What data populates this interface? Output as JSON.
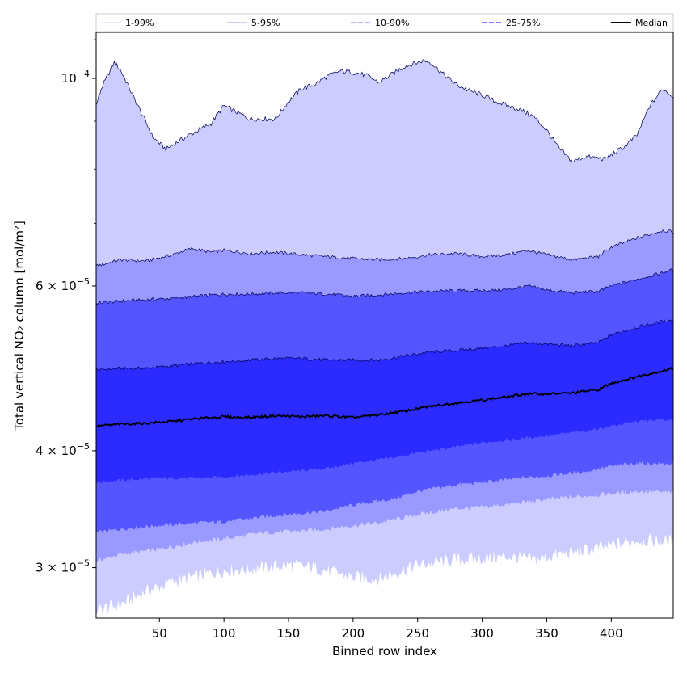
{
  "chart_data": {
    "type": "area",
    "title": "",
    "xlabel": "Binned row index",
    "ylabel": "Total vertical NO₂ column [mol/m²]",
    "x_range": [
      1,
      448
    ],
    "ylim": [
      2.65e-05,
      0.000112
    ],
    "y_scale": "log",
    "x_ticks": [
      50,
      100,
      150,
      200,
      250,
      300,
      350,
      400
    ],
    "x_tick_labels": [
      "50",
      "100",
      "150",
      "200",
      "250",
      "300",
      "350",
      "400"
    ],
    "y_ticks": [
      3e-05,
      4e-05,
      6e-05,
      0.0001
    ],
    "y_tick_labels": [
      {
        "mant": "3 × 10",
        "exp": "−5"
      },
      {
        "mant": "4 × 10",
        "exp": "−5"
      },
      {
        "mant": "6 × 10",
        "exp": "−5"
      },
      {
        "mant": "10",
        "exp": "−4"
      }
    ],
    "legend_position": "top",
    "legend": [
      "1-99%",
      "5-95%",
      "10-90%",
      "25-75%",
      "Median"
    ],
    "colors": {
      "band_1_99": "#ccccff",
      "band_5_95": "#9999ff",
      "band_10_90": "#5555ff",
      "band_25_75": "#2b2bff",
      "median": "#000000",
      "outline": "#000055"
    },
    "bands": [
      {
        "name": "1-99%",
        "lower": {
          "x": [
            1,
            10,
            20,
            40,
            60,
            80,
            100,
            130,
            150,
            170,
            200,
            220,
            250,
            280,
            300,
            320,
            340,
            360,
            380,
            400,
            420,
            448
          ],
          "y": [
            2.7e-05,
            2.72e-05,
            2.74e-05,
            2.83e-05,
            2.9e-05,
            2.94e-05,
            2.98e-05,
            3e-05,
            3.02e-05,
            3e-05,
            2.93e-05,
            2.92e-05,
            3.02e-05,
            3.06e-05,
            3.07e-05,
            3.08e-05,
            3.06e-05,
            3.1e-05,
            3.13e-05,
            3.17e-05,
            3.21e-05,
            3.2e-05
          ]
        },
        "upper": {
          "x": [
            1,
            5,
            15,
            20,
            30,
            45,
            55,
            70,
            90,
            100,
            110,
            120,
            140,
            150,
            160,
            170,
            180,
            190,
            200,
            210,
            220,
            240,
            255,
            260,
            270,
            280,
            290,
            300,
            310,
            320,
            330,
            340,
            350,
            360,
            370,
            380,
            395,
            410,
            420,
            430,
            440,
            448
          ],
          "y": [
            9.35e-05,
            9.75e-05,
            0.000104,
            0.000102,
            9.55e-05,
            8.65e-05,
            8.4e-05,
            8.65e-05,
            8.95e-05,
            9.35e-05,
            9.2e-05,
            9.05e-05,
            9.05e-05,
            9.45e-05,
            9.75e-05,
            9.85e-05,
            0.0001005,
            0.0001018,
            0.0001015,
            0.0001008,
            9.9e-05,
            0.000103,
            0.0001045,
            0.000104,
            0.000101,
            9.85e-05,
            9.7e-05,
            9.6e-05,
            9.45e-05,
            9.35e-05,
            9.25e-05,
            9.1e-05,
            8.8e-05,
            8.4e-05,
            8.15e-05,
            8.25e-05,
            8.2e-05,
            8.45e-05,
            8.7e-05,
            9.35e-05,
            9.75e-05,
            9.55e-05
          ]
        }
      },
      {
        "name": "5-95%",
        "lower": {
          "x": [
            1,
            20,
            50,
            80,
            100,
            130,
            150,
            180,
            200,
            220,
            250,
            280,
            300,
            330,
            350,
            380,
            400,
            420,
            448
          ],
          "y": [
            3.05e-05,
            3.1e-05,
            3.14e-05,
            3.2e-05,
            3.22e-05,
            3.27e-05,
            3.28e-05,
            3.3e-05,
            3.33e-05,
            3.35e-05,
            3.42e-05,
            3.47e-05,
            3.48e-05,
            3.52e-05,
            3.55e-05,
            3.58e-05,
            3.6e-05,
            3.62e-05,
            3.61e-05
          ]
        },
        "upper": {
          "x": [
            1,
            20,
            40,
            60,
            75,
            90,
            100,
            120,
            140,
            160,
            180,
            200,
            220,
            240,
            260,
            280,
            300,
            320,
            335,
            350,
            370,
            390,
            400,
            420,
            440,
            448
          ],
          "y": [
            6.3e-05,
            6.4e-05,
            6.38e-05,
            6.48e-05,
            6.58e-05,
            6.52e-05,
            6.55e-05,
            6.5e-05,
            6.52e-05,
            6.48e-05,
            6.45e-05,
            6.42e-05,
            6.4e-05,
            6.42e-05,
            6.48e-05,
            6.5e-05,
            6.45e-05,
            6.48e-05,
            6.55e-05,
            6.48e-05,
            6.4e-05,
            6.45e-05,
            6.6e-05,
            6.75e-05,
            6.88e-05,
            6.85e-05
          ]
        }
      },
      {
        "name": "10-90%",
        "lower": {
          "x": [
            1,
            20,
            50,
            80,
            100,
            130,
            150,
            180,
            200,
            230,
            250,
            280,
            300,
            330,
            350,
            380,
            400,
            420,
            448
          ],
          "y": [
            3.27e-05,
            3.3e-05,
            3.33e-05,
            3.35e-05,
            3.36e-05,
            3.4e-05,
            3.42e-05,
            3.45e-05,
            3.5e-05,
            3.55e-05,
            3.62e-05,
            3.68e-05,
            3.7e-05,
            3.74e-05,
            3.76e-05,
            3.8e-05,
            3.85e-05,
            3.88e-05,
            3.87e-05
          ]
        },
        "upper": {
          "x": [
            1,
            20,
            40,
            60,
            80,
            100,
            120,
            140,
            160,
            180,
            200,
            220,
            240,
            260,
            280,
            300,
            320,
            335,
            350,
            370,
            390,
            400,
            420,
            440,
            448
          ],
          "y": [
            5.75e-05,
            5.78e-05,
            5.8e-05,
            5.82e-05,
            5.85e-05,
            5.88e-05,
            5.88e-05,
            5.9e-05,
            5.9e-05,
            5.88e-05,
            5.85e-05,
            5.87e-05,
            5.9e-05,
            5.92e-05,
            5.93e-05,
            5.93e-05,
            5.95e-05,
            6e-05,
            5.94e-05,
            5.9e-05,
            5.92e-05,
            6e-05,
            6.1e-05,
            6.2e-05,
            6.25e-05
          ]
        }
      },
      {
        "name": "25-75%",
        "lower": {
          "x": [
            1,
            20,
            50,
            80,
            100,
            130,
            150,
            180,
            200,
            230,
            250,
            280,
            300,
            330,
            350,
            380,
            400,
            420,
            448
          ],
          "y": [
            3.7e-05,
            3.72e-05,
            3.74e-05,
            3.74e-05,
            3.75e-05,
            3.78e-05,
            3.8e-05,
            3.83e-05,
            3.88e-05,
            3.93e-05,
            3.98e-05,
            4.04e-05,
            4.08e-05,
            4.12e-05,
            4.15e-05,
            4.2e-05,
            4.25e-05,
            4.3e-05,
            4.32e-05
          ]
        },
        "upper": {
          "x": [
            1,
            20,
            40,
            60,
            80,
            100,
            120,
            140,
            160,
            180,
            200,
            220,
            240,
            260,
            280,
            300,
            320,
            335,
            350,
            370,
            390,
            400,
            420,
            440,
            448
          ],
          "y": [
            4.88e-05,
            4.9e-05,
            4.9e-05,
            4.93e-05,
            4.96e-05,
            4.98e-05,
            5e-05,
            5.02e-05,
            5.02e-05,
            5e-05,
            5e-05,
            5e-05,
            5.05e-05,
            5.1e-05,
            5.12e-05,
            5.15e-05,
            5.18e-05,
            5.22e-05,
            5.2e-05,
            5.18e-05,
            5.22e-05,
            5.32e-05,
            5.42e-05,
            5.5e-05,
            5.52e-05
          ]
        }
      }
    ],
    "median": {
      "name": "Median",
      "x": [
        1,
        20,
        40,
        60,
        80,
        100,
        120,
        140,
        160,
        180,
        200,
        220,
        240,
        260,
        280,
        300,
        320,
        335,
        350,
        370,
        390,
        400,
        420,
        440,
        448
      ],
      "y": [
        4.25e-05,
        4.27e-05,
        4.28e-05,
        4.3e-05,
        4.33e-05,
        4.35e-05,
        4.34e-05,
        4.36e-05,
        4.35e-05,
        4.36e-05,
        4.34e-05,
        4.37e-05,
        4.41e-05,
        4.46e-05,
        4.5e-05,
        4.53e-05,
        4.57e-05,
        4.6e-05,
        4.6e-05,
        4.61e-05,
        4.65e-05,
        4.72e-05,
        4.8e-05,
        4.87e-05,
        4.9e-05
      ]
    }
  }
}
